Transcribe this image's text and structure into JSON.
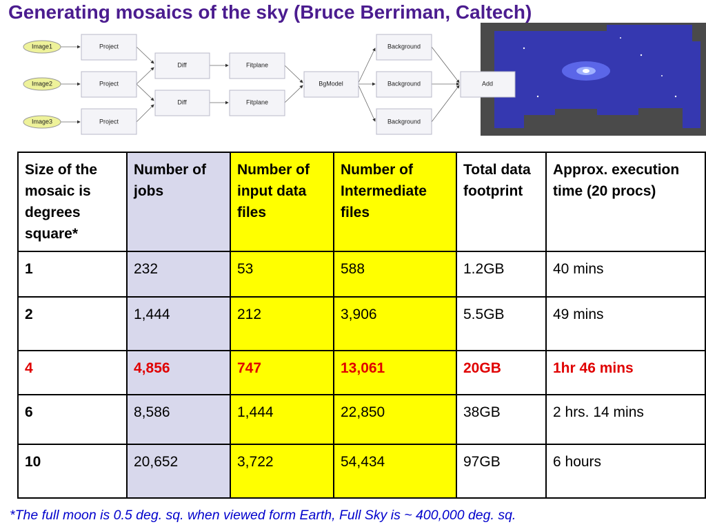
{
  "title": "Generating mosaics of the sky (Bruce Berriman, Caltech)",
  "diagram": {
    "nodes": [
      "Image1",
      "Image2",
      "Image3",
      "Project",
      "Project",
      "Project",
      "Diff",
      "Diff",
      "Fitplane",
      "Fitplane",
      "BgModel",
      "Background",
      "Background",
      "Background",
      "Add"
    ]
  },
  "table": {
    "header": [
      "Size of the mosaic is degrees square*",
      "Number of jobs",
      "Number of input data files",
      "Number of Intermediate files",
      "Total data footprint",
      "Approx. execution time (20 procs)"
    ],
    "rows": [
      [
        "1",
        "232",
        "53",
        "588",
        "1.2GB",
        "40 mins"
      ],
      [
        "2",
        "1,444",
        "212",
        "3,906",
        "5.5GB",
        "49 mins"
      ],
      [
        "4",
        "4,856",
        "747",
        "13,061",
        "20GB",
        "1hr 46 mins"
      ],
      [
        "6",
        "8,586",
        "1,444",
        "22,850",
        "38GB",
        "2 hrs. 14 mins"
      ],
      [
        "10",
        "20,652",
        "3,722",
        "54,434",
        "97GB",
        "6 hours"
      ]
    ]
  },
  "footnote": "*The full moon is 0.5 deg. sq. when viewed form Earth, Full Sky  is ~ 400,000 deg. sq."
}
